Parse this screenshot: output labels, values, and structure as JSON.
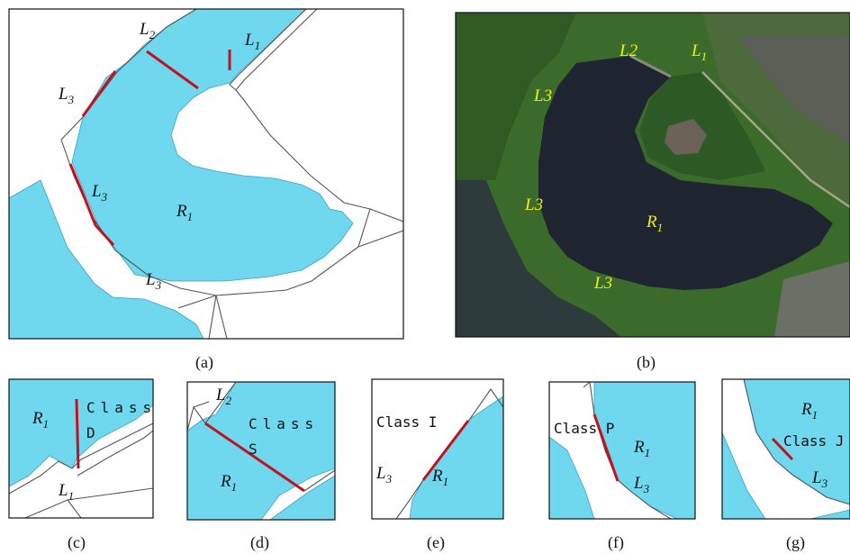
{
  "panel_a": {
    "caption": "(a)",
    "labels": {
      "L1": "L",
      "L1_sub": "1",
      "L2": "L",
      "L2_sub": "2",
      "L3a": "L",
      "L3a_sub": "3",
      "L3b": "L",
      "L3b_sub": "3",
      "L3c": "L",
      "L3c_sub": "3",
      "R1": "R",
      "R1_sub": "1"
    }
  },
  "panel_b": {
    "caption": "(b)",
    "labels": {
      "L1": "L",
      "L1_sub": "1",
      "L2": "L2",
      "L3a": "L3",
      "L3b": "L3",
      "L3c": "L3",
      "R1": "R",
      "R1_sub": "1"
    }
  },
  "panel_c": {
    "caption": "(c)",
    "class_text_1": "Class",
    "class_text_2": "D",
    "R1": "R",
    "R1_sub": "1",
    "L1": "L",
    "L1_sub": "1"
  },
  "panel_d": {
    "caption": "(d)",
    "class_text_1": "Class",
    "class_text_2": "S",
    "R1": "R",
    "R1_sub": "1",
    "L2": "L",
    "L2_sub": "2"
  },
  "panel_e": {
    "caption": "(e)",
    "class_text": "Class I",
    "R1": "R",
    "R1_sub": "1",
    "L3": "L",
    "L3_sub": "3"
  },
  "panel_f": {
    "caption": "(f)",
    "class_text": "Class P",
    "R1": "R",
    "R1_sub": "1",
    "L3": "L",
    "L3_sub": "3"
  },
  "panel_g": {
    "caption": "(g)",
    "class_text": "Class J",
    "R1": "R",
    "R1_sub": "1",
    "L3": "L",
    "L3_sub": "3"
  },
  "colors": {
    "water": "#6fd8ef",
    "water_edge": "#3b9fc8",
    "red": "#c1121f",
    "road": "#555555",
    "satellite_water": "#1f2530",
    "satellite_veg": "#3f7a2c",
    "yellow": "#f2f200"
  }
}
